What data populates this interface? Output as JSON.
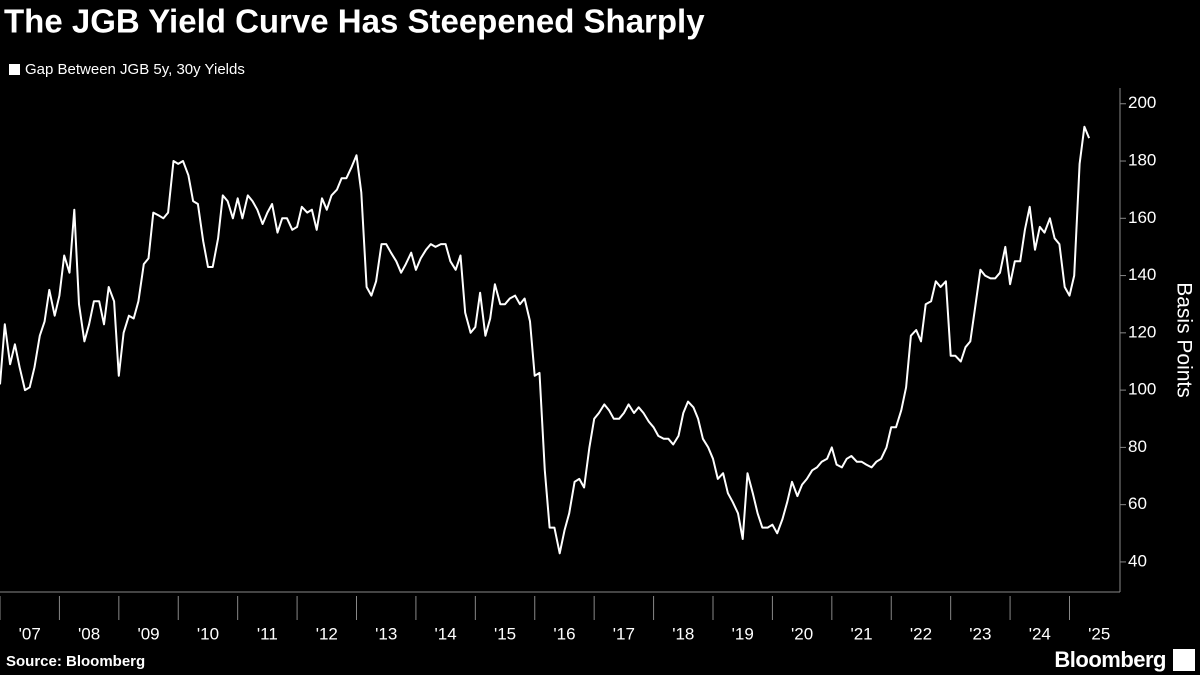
{
  "chart_data": {
    "type": "line",
    "title": "The JGB Yield Curve Has Steepened Sharply",
    "y_label": "Basis Points",
    "source": "Source: Bloomberg",
    "brand": "Bloomberg",
    "xlim": [
      2007,
      2025.85
    ],
    "ylim": [
      29.5,
      205.5
    ],
    "yticks": [
      40,
      60,
      80,
      100,
      120,
      140,
      160,
      180,
      200
    ],
    "xticks": [
      {
        "value": 2007,
        "label": "'07"
      },
      {
        "value": 2008,
        "label": "'08"
      },
      {
        "value": 2009,
        "label": "'09"
      },
      {
        "value": 2010,
        "label": "'10"
      },
      {
        "value": 2011,
        "label": "'11"
      },
      {
        "value": 2012,
        "label": "'12"
      },
      {
        "value": 2013,
        "label": "'13"
      },
      {
        "value": 2014,
        "label": "'14"
      },
      {
        "value": 2015,
        "label": "'15"
      },
      {
        "value": 2016,
        "label": "'16"
      },
      {
        "value": 2017,
        "label": "'17"
      },
      {
        "value": 2018,
        "label": "'18"
      },
      {
        "value": 2019,
        "label": "'19"
      },
      {
        "value": 2020,
        "label": "'20"
      },
      {
        "value": 2021,
        "label": "'21"
      },
      {
        "value": 2022,
        "label": "'22"
      },
      {
        "value": 2023,
        "label": "'23"
      },
      {
        "value": 2024,
        "label": "'24"
      },
      {
        "value": 2025,
        "label": "'25"
      }
    ],
    "x": [
      2007,
      2007.08,
      2007.17,
      2007.25,
      2007.33,
      2007.42,
      2007.5,
      2007.58,
      2007.67,
      2007.75,
      2007.83,
      2007.92,
      2008,
      2008.08,
      2008.17,
      2008.25,
      2008.33,
      2008.42,
      2008.5,
      2008.58,
      2008.67,
      2008.75,
      2008.83,
      2008.92,
      2009,
      2009.08,
      2009.17,
      2009.25,
      2009.33,
      2009.42,
      2009.5,
      2009.58,
      2009.67,
      2009.75,
      2009.83,
      2009.92,
      2010,
      2010.08,
      2010.17,
      2010.25,
      2010.33,
      2010.42,
      2010.5,
      2010.58,
      2010.67,
      2010.75,
      2010.83,
      2010.92,
      2011,
      2011.08,
      2011.17,
      2011.25,
      2011.33,
      2011.42,
      2011.5,
      2011.58,
      2011.67,
      2011.75,
      2011.83,
      2011.92,
      2012,
      2012.08,
      2012.17,
      2012.25,
      2012.33,
      2012.42,
      2012.5,
      2012.58,
      2012.67,
      2012.75,
      2012.83,
      2012.92,
      2013,
      2013.08,
      2013.17,
      2013.25,
      2013.33,
      2013.42,
      2013.5,
      2013.58,
      2013.67,
      2013.75,
      2013.83,
      2013.92,
      2014,
      2014.08,
      2014.17,
      2014.25,
      2014.33,
      2014.42,
      2014.5,
      2014.58,
      2014.67,
      2014.75,
      2014.83,
      2014.92,
      2015,
      2015.08,
      2015.17,
      2015.25,
      2015.33,
      2015.42,
      2015.5,
      2015.58,
      2015.67,
      2015.75,
      2015.83,
      2015.92,
      2016,
      2016.08,
      2016.17,
      2016.25,
      2016.33,
      2016.42,
      2016.5,
      2016.58,
      2016.67,
      2016.75,
      2016.83,
      2016.92,
      2017,
      2017.08,
      2017.17,
      2017.25,
      2017.33,
      2017.42,
      2017.5,
      2017.58,
      2017.67,
      2017.75,
      2017.83,
      2017.92,
      2018,
      2018.08,
      2018.17,
      2018.25,
      2018.33,
      2018.42,
      2018.5,
      2018.58,
      2018.67,
      2018.75,
      2018.83,
      2018.92,
      2019,
      2019.08,
      2019.17,
      2019.25,
      2019.33,
      2019.42,
      2019.5,
      2019.58,
      2019.67,
      2019.75,
      2019.83,
      2019.92,
      2020,
      2020.08,
      2020.17,
      2020.25,
      2020.33,
      2020.42,
      2020.5,
      2020.58,
      2020.67,
      2020.75,
      2020.83,
      2020.92,
      2021,
      2021.08,
      2021.17,
      2021.25,
      2021.33,
      2021.42,
      2021.5,
      2021.58,
      2021.67,
      2021.75,
      2021.83,
      2021.92,
      2022,
      2022.08,
      2022.17,
      2022.25,
      2022.33,
      2022.42,
      2022.5,
      2022.58,
      2022.67,
      2022.75,
      2022.83,
      2022.92,
      2023,
      2023.08,
      2023.17,
      2023.25,
      2023.33,
      2023.42,
      2023.5,
      2023.58,
      2023.67,
      2023.75,
      2023.83,
      2023.92,
      2024,
      2024.08,
      2024.17,
      2024.25,
      2024.33,
      2024.42,
      2024.5,
      2024.58,
      2024.67,
      2024.75,
      2024.83,
      2024.92,
      2025,
      2025.08,
      2025.17,
      2025.25,
      2025.33
    ],
    "series": [
      {
        "name": "Gap Between JGB 5y, 30y Yields",
        "color": "#ffffff",
        "values": [
          102,
          123,
          109,
          116,
          108,
          100,
          101,
          108,
          119,
          124,
          135,
          126,
          133,
          147,
          141,
          163,
          130,
          117,
          123,
          131,
          131,
          123,
          136,
          131,
          105,
          120,
          126,
          125,
          131,
          144,
          146,
          162,
          161,
          160,
          162,
          180,
          179,
          180,
          175,
          166,
          165,
          152,
          143,
          143,
          153,
          168,
          166,
          160,
          167,
          160,
          168,
          166,
          163,
          158,
          162,
          165,
          155,
          160,
          160,
          156,
          157,
          164,
          162,
          163,
          156,
          167,
          163,
          168,
          170,
          174,
          174,
          178,
          182,
          169,
          136,
          133,
          138,
          151,
          151,
          148,
          145,
          141,
          144,
          148,
          142,
          146,
          149,
          151,
          150,
          151,
          151,
          145,
          142,
          147,
          127,
          120,
          122,
          134,
          119,
          125,
          137,
          130,
          130,
          132,
          133,
          130,
          132,
          124,
          105,
          106,
          72,
          52,
          52,
          43,
          51,
          57,
          68,
          69,
          66,
          80,
          90,
          92,
          95,
          93,
          90,
          90,
          92,
          95,
          92,
          94,
          92,
          89,
          87,
          84,
          83,
          83,
          81,
          84,
          92,
          96,
          94,
          90,
          83,
          80,
          76,
          69,
          71,
          64,
          61,
          57,
          48,
          71,
          64,
          57,
          52,
          52,
          53,
          50,
          55,
          61,
          68,
          63,
          67,
          69,
          72,
          73,
          75,
          76,
          80,
          74,
          73,
          76,
          77,
          75,
          75,
          74,
          73,
          75,
          76,
          80,
          87,
          87,
          93,
          101,
          119,
          121,
          117,
          130,
          131,
          138,
          136,
          138,
          112,
          112,
          110,
          115,
          117,
          130,
          142,
          140,
          139,
          139,
          141,
          150,
          137,
          145,
          145,
          156,
          164,
          149,
          157,
          155,
          160,
          153,
          151,
          136,
          133,
          140,
          179,
          192,
          188
        ]
      }
    ]
  }
}
